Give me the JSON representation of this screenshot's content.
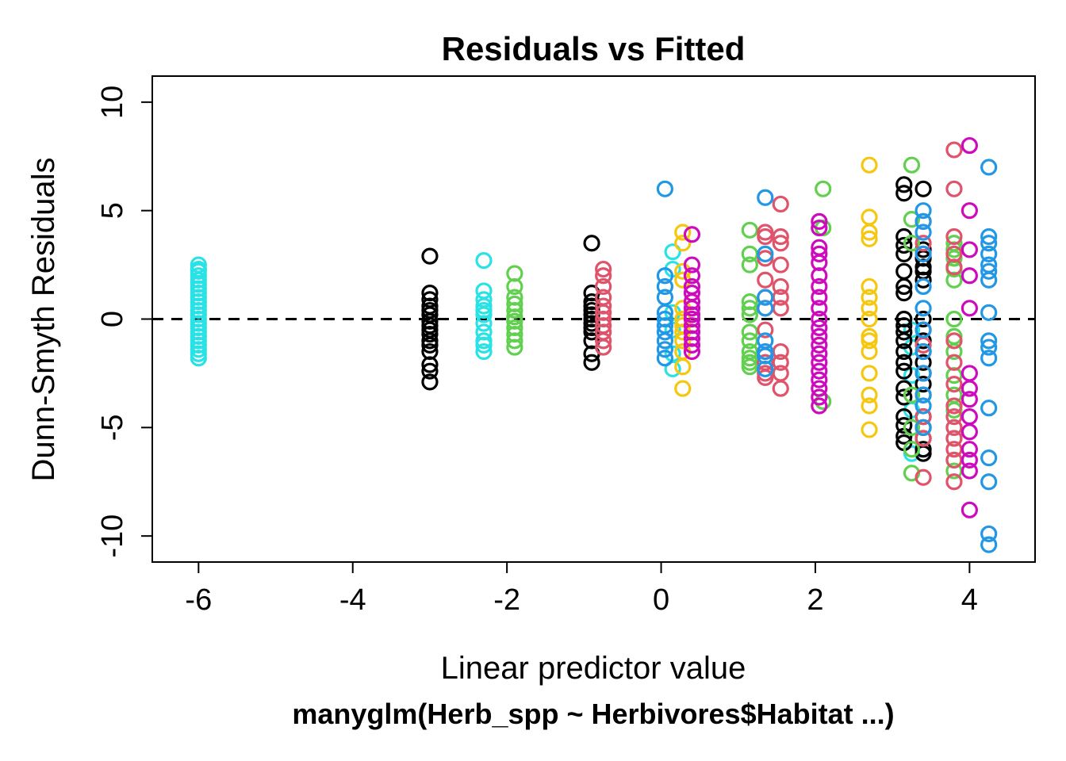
{
  "chart_data": {
    "type": "scatter",
    "title": "Residuals vs Fitted",
    "xlabel": "Linear predictor value",
    "ylabel": "Dunn-Smyth Residuals",
    "subtitle": "manyglm(Herb_spp ~ Herbivores$Habitat ...)",
    "xlim": [
      -6.6,
      4.85
    ],
    "ylim": [
      -11.2,
      11.2
    ],
    "xticks": [
      -6,
      -4,
      -2,
      0,
      2,
      4
    ],
    "xtick_labels": [
      "-6",
      "-4",
      "-2",
      "0",
      "2",
      "4"
    ],
    "yticks": [
      -10,
      -5,
      0,
      5,
      10
    ],
    "ytick_labels": [
      "-10",
      "-5",
      "0",
      "5",
      "10"
    ],
    "reference_line": {
      "y": 0,
      "style": "dashed"
    },
    "grid": false,
    "colors": {
      "black": "#000000",
      "red": "#DF536B",
      "green": "#61D04F",
      "blue": "#2297E6",
      "cyan": "#28E2E5",
      "magenta": "#CD0BBC",
      "yellow": "#F5C710"
    },
    "series": [
      {
        "color": "cyan",
        "groups": [
          {
            "x": -6.0,
            "y": [
              2.5,
              2.3,
              2.2,
              2.0,
              1.8,
              1.6,
              1.4,
              1.2,
              1.0,
              0.8,
              0.6,
              0.4,
              0.2,
              0.0,
              -0.2,
              -0.4,
              -0.6,
              -0.8,
              -1.0,
              -1.2,
              -1.4,
              -1.6,
              -1.8
            ]
          },
          {
            "x": -2.3,
            "y": [
              2.7,
              1.3,
              0.9,
              0.6,
              0.4,
              0.2,
              -0.2,
              -0.6,
              -1.0,
              -1.2,
              -1.5
            ]
          },
          {
            "x": 0.15,
            "y": [
              3.1,
              2.3,
              0.3,
              -0.5,
              -1.6,
              -2.3
            ]
          },
          {
            "x": 3.25,
            "y": [
              -0.5,
              -1.3,
              -2.6,
              -4.2,
              -6.2
            ]
          }
        ]
      },
      {
        "color": "black",
        "groups": [
          {
            "x": -3.0,
            "y": [
              2.9,
              1.2,
              0.9,
              0.6,
              0.4,
              0.2,
              -0.1,
              -0.3,
              -0.5,
              -0.7,
              -1.0,
              -1.2,
              -1.5,
              -2.1,
              -2.4,
              -2.9
            ]
          },
          {
            "x": -0.9,
            "y": [
              3.5,
              1.2,
              0.8,
              0.6,
              0.4,
              0.2,
              0.0,
              -0.2,
              -0.4,
              -0.6,
              -1.0,
              -1.6,
              -2.0
            ]
          },
          {
            "x": 3.15,
            "y": [
              6.2,
              5.8,
              3.8,
              3.4,
              3.0,
              2.2,
              1.5,
              1.2,
              0.0,
              -0.3,
              -0.6,
              -1.0,
              -1.5,
              -2.0,
              -2.4,
              -3.2,
              -3.6,
              -4.5,
              -4.9,
              -5.4,
              -5.7
            ]
          },
          {
            "x": 3.4,
            "y": [
              6.0,
              3.2,
              2.8,
              2.4,
              2.2,
              1.8,
              0.0,
              -0.5,
              -1.0,
              -1.5,
              -2.0,
              -2.5,
              -3.0,
              -3.5,
              -4.5,
              -5.0,
              -5.5,
              -6.0,
              -6.2
            ]
          }
        ]
      },
      {
        "color": "green",
        "groups": [
          {
            "x": -1.9,
            "y": [
              2.1,
              1.5,
              1.0,
              0.7,
              0.4,
              0.1,
              -0.1,
              -0.4,
              -0.7,
              -1.0,
              -1.3
            ]
          },
          {
            "x": 1.15,
            "y": [
              4.1,
              3.0,
              2.5,
              0.8,
              0.5,
              0.2,
              -0.6,
              -1.0,
              -1.5,
              -1.8,
              -2.0,
              -2.2
            ]
          },
          {
            "x": 2.1,
            "y": [
              6.0,
              4.2,
              -3.8
            ]
          },
          {
            "x": 3.25,
            "y": [
              7.1,
              4.6,
              3.5,
              -3.5,
              -5.0,
              -6.0,
              -7.1
            ]
          },
          {
            "x": 3.8,
            "y": [
              3.5,
              3.2,
              2.8,
              2.3,
              1.8,
              0.0,
              -0.8,
              -1.5,
              -2.6,
              -3.5,
              -4.2,
              -5.0,
              -5.5,
              -6.5,
              -7.0
            ]
          }
        ]
      },
      {
        "color": "red",
        "groups": [
          {
            "x": -0.75,
            "y": [
              2.3,
              2.0,
              1.5,
              1.0,
              0.6,
              0.3,
              0.0,
              -0.3,
              -0.6,
              -1.0,
              -1.3
            ]
          },
          {
            "x": 1.35,
            "y": [
              4.0,
              3.8,
              2.8,
              1.8,
              1.0,
              0.5,
              -0.5,
              -1.5,
              -2.0,
              -2.5,
              -2.7
            ]
          },
          {
            "x": 1.55,
            "y": [
              5.3,
              3.8,
              3.5,
              2.5,
              1.5,
              1.0,
              0.5,
              -1.5,
              -2.0,
              -2.5,
              -3.2
            ]
          },
          {
            "x": 3.4,
            "y": [
              4.5,
              3.5,
              -1.2,
              -2.5,
              -4.5,
              -5.5,
              -7.3
            ]
          },
          {
            "x": 3.8,
            "y": [
              7.8,
              6.0,
              3.8,
              3.0,
              2.4,
              -1.0,
              -2.0,
              -3.0,
              -4.0,
              -4.5,
              -5.0,
              -5.5,
              -6.0,
              -6.5,
              -7.5
            ]
          }
        ]
      },
      {
        "color": "blue",
        "groups": [
          {
            "x": 0.05,
            "y": [
              6.0,
              2.0,
              1.5,
              1.0,
              0.3,
              0.0,
              -0.3,
              -0.6,
              -1.0,
              -1.4,
              -1.8
            ]
          },
          {
            "x": 1.35,
            "y": [
              5.6,
              3.0,
              1.0,
              0.5,
              -1.0,
              -1.5,
              -1.7,
              -2.3
            ]
          },
          {
            "x": 3.4,
            "y": [
              5.0,
              4.5,
              4.0,
              3.0,
              1.5,
              0.5,
              -0.5,
              -1.5,
              -2.5,
              -3.5,
              -4.0,
              -5.0
            ]
          },
          {
            "x": 4.25,
            "y": [
              7.0,
              3.8,
              3.5,
              3.0,
              2.5,
              2.2,
              1.8,
              0.3,
              -1.0,
              -1.3,
              -1.8,
              -4.1,
              -6.4,
              -7.5,
              -9.9,
              -10.4
            ]
          }
        ]
      },
      {
        "color": "yellow",
        "groups": [
          {
            "x": 0.28,
            "y": [
              4.0,
              3.5,
              2.2,
              1.8,
              0.5,
              0.0,
              -0.3,
              -0.6,
              -1.0,
              -1.5,
              -2.2,
              -3.2
            ]
          },
          {
            "x": 2.7,
            "y": [
              7.1,
              4.7,
              4.0,
              3.7,
              1.5,
              1.0,
              0.5,
              0.0,
              -0.8,
              -1.0,
              -1.5,
              -2.5,
              -3.5,
              -4.0,
              -5.1
            ]
          }
        ]
      },
      {
        "color": "magenta",
        "groups": [
          {
            "x": 0.4,
            "y": [
              3.9,
              2.5,
              2.0,
              1.5,
              1.2,
              0.8,
              0.5,
              0.2,
              0.0,
              -0.3,
              -0.6,
              -0.9,
              -1.2,
              -1.5
            ]
          },
          {
            "x": 2.05,
            "y": [
              4.5,
              4.2,
              3.3,
              3.0,
              2.6,
              2.0,
              1.5,
              1.0,
              0.5,
              0.0,
              -0.4,
              -0.8,
              -1.2,
              -1.6,
              -2.0,
              -2.4,
              -2.8,
              -3.2,
              -3.6,
              -4.0
            ]
          },
          {
            "x": 4.0,
            "y": [
              8.0,
              5.0,
              3.2,
              2.0,
              0.5,
              -2.5,
              -3.2,
              -3.7,
              -4.5,
              -5.2,
              -6.0,
              -6.5,
              -7.0,
              -8.8
            ]
          }
        ]
      }
    ]
  }
}
